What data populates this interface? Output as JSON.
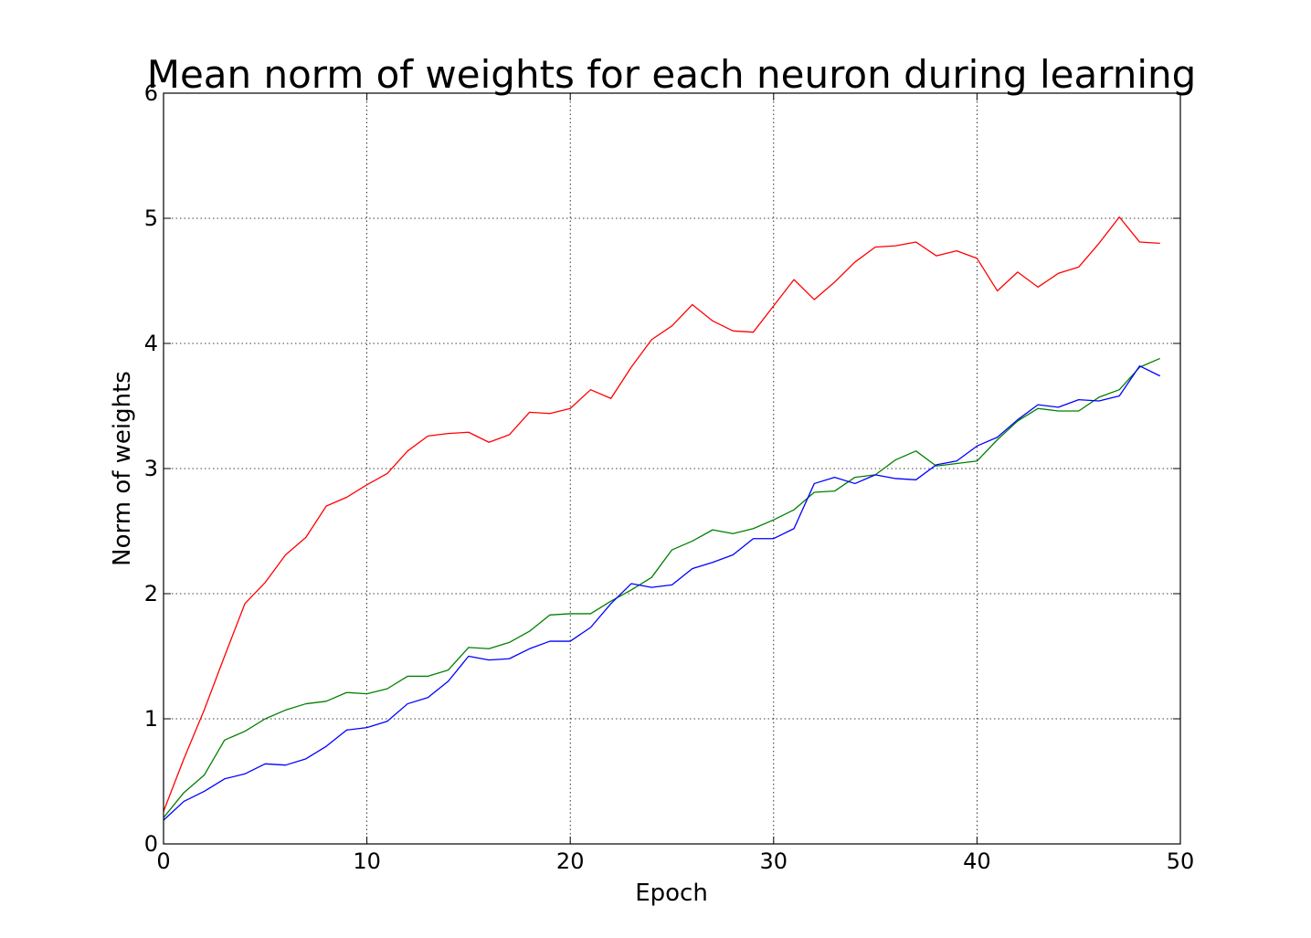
{
  "chart_data": {
    "type": "line",
    "title": "Mean norm of weights for each neuron during learning",
    "xlabel": "Epoch",
    "ylabel": "Norm of weights",
    "xlim": [
      0,
      50
    ],
    "ylim": [
      0,
      6
    ],
    "xticks": [
      "0",
      "10",
      "20",
      "30",
      "40",
      "50"
    ],
    "yticks": [
      "0",
      "1",
      "2",
      "3",
      "4",
      "5",
      "6"
    ],
    "xtick_values": [
      0,
      10,
      20,
      30,
      40,
      50
    ],
    "ytick_values": [
      0,
      1,
      2,
      3,
      4,
      5,
      6
    ],
    "grid": true,
    "x": [
      0,
      1,
      2,
      3,
      4,
      5,
      6,
      7,
      8,
      9,
      10,
      11,
      12,
      13,
      14,
      15,
      16,
      17,
      18,
      19,
      20,
      21,
      22,
      23,
      24,
      25,
      26,
      27,
      28,
      29,
      30,
      31,
      32,
      33,
      34,
      35,
      36,
      37,
      38,
      39,
      40,
      41,
      42,
      43,
      44,
      45,
      46,
      47,
      48,
      49
    ],
    "series": [
      {
        "name": "red",
        "color": "#ff0000",
        "values": [
          0.26,
          0.68,
          1.07,
          1.5,
          1.92,
          2.09,
          2.31,
          2.45,
          2.7,
          2.77,
          2.87,
          2.96,
          3.14,
          3.26,
          3.28,
          3.29,
          3.21,
          3.27,
          3.45,
          3.44,
          3.48,
          3.63,
          3.56,
          3.81,
          4.03,
          4.14,
          4.31,
          4.18,
          4.1,
          4.09,
          4.3,
          4.51,
          4.35,
          4.49,
          4.65,
          4.77,
          4.78,
          4.81,
          4.7,
          4.74,
          4.68,
          4.42,
          4.57,
          4.45,
          4.56,
          4.61,
          4.8,
          5.01,
          4.81,
          4.8
        ]
      },
      {
        "name": "green",
        "color": "#008000",
        "values": [
          0.21,
          0.41,
          0.55,
          0.83,
          0.9,
          1.0,
          1.07,
          1.12,
          1.14,
          1.21,
          1.2,
          1.24,
          1.34,
          1.34,
          1.39,
          1.57,
          1.56,
          1.61,
          1.7,
          1.83,
          1.84,
          1.84,
          1.94,
          2.03,
          2.13,
          2.35,
          2.42,
          2.51,
          2.48,
          2.52,
          2.59,
          2.67,
          2.81,
          2.82,
          2.93,
          2.95,
          3.07,
          3.14,
          3.02,
          3.04,
          3.06,
          3.23,
          3.38,
          3.48,
          3.46,
          3.46,
          3.57,
          3.63,
          3.81,
          3.88
        ]
      },
      {
        "name": "blue",
        "color": "#0000ff",
        "values": [
          0.19,
          0.34,
          0.42,
          0.52,
          0.56,
          0.64,
          0.63,
          0.68,
          0.78,
          0.91,
          0.93,
          0.98,
          1.12,
          1.17,
          1.3,
          1.5,
          1.47,
          1.48,
          1.56,
          1.62,
          1.62,
          1.73,
          1.92,
          2.08,
          2.05,
          2.07,
          2.2,
          2.25,
          2.31,
          2.44,
          2.44,
          2.52,
          2.88,
          2.93,
          2.88,
          2.95,
          2.92,
          2.91,
          3.03,
          3.06,
          3.18,
          3.25,
          3.39,
          3.51,
          3.49,
          3.55,
          3.54,
          3.58,
          3.82,
          3.74
        ]
      }
    ]
  }
}
